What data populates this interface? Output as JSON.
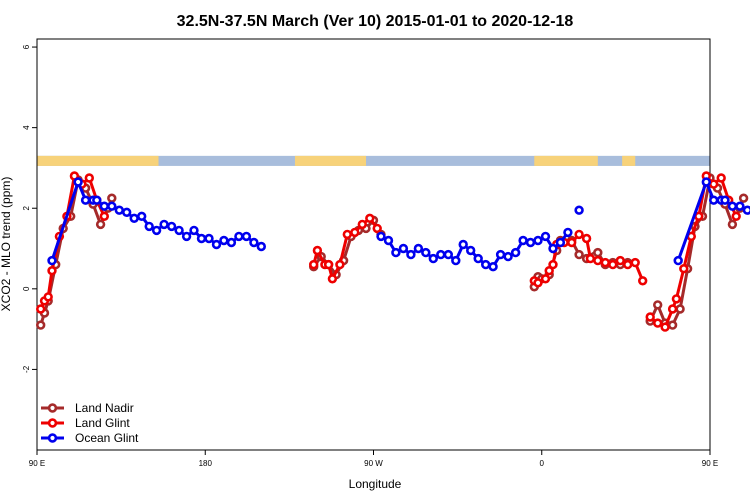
{
  "chart_data": {
    "type": "line",
    "title": "32.5N-37.5N March (Ver 10)   2015-01-01 to 2020-12-18",
    "xlabel": "Longitude",
    "ylabel": "XCO2 - MLO trend (ppm)",
    "xlim": [
      90,
      450
    ],
    "ylim": [
      -4,
      6.2
    ],
    "x_ticks": [
      {
        "value": 90,
        "label": "90 E"
      },
      {
        "value": 180,
        "label": "180"
      },
      {
        "value": 270,
        "label": "90 W"
      },
      {
        "value": 360,
        "label": "0"
      },
      {
        "value": 450,
        "label": "90 E"
      },
      {
        "value": 540,
        "label": "180"
      }
    ],
    "y_ticks": [
      {
        "value": -2,
        "label": "-2"
      },
      {
        "value": 0,
        "label": "0"
      },
      {
        "value": 2,
        "label": "2"
      },
      {
        "value": 4,
        "label": "4"
      },
      {
        "value": 6,
        "label": "6"
      }
    ],
    "surface_band": {
      "y_range": [
        3.05,
        3.3
      ],
      "ocean_color": "#a8bddc",
      "land_color": "#f7d27a",
      "land_segments": [
        [
          90,
          155
        ],
        [
          228,
          266
        ],
        [
          356,
          390
        ],
        [
          403,
          410
        ],
        [
          472,
          514
        ]
      ]
    },
    "legend_position": "bottom-left",
    "series": [
      {
        "name": "Land Nadir",
        "color": "#a52a2a",
        "points": [
          [
            92,
            -0.9
          ],
          [
            94,
            -0.6
          ],
          [
            96,
            -0.3
          ],
          [
            100,
            0.6
          ],
          [
            104,
            1.5
          ],
          [
            108,
            1.8
          ],
          [
            112,
            2.7
          ],
          [
            116,
            2.5
          ],
          [
            120,
            2.1
          ],
          [
            124,
            1.6
          ],
          [
            128,
            2.0
          ],
          [
            130,
            2.25
          ],
          null,
          [
            238,
            0.55
          ],
          [
            242,
            0.8
          ],
          [
            246,
            0.6
          ],
          [
            250,
            0.35
          ],
          [
            254,
            0.7
          ],
          [
            258,
            1.3
          ],
          [
            262,
            1.45
          ],
          [
            266,
            1.5
          ],
          [
            270,
            1.7
          ],
          [
            274,
            1.35
          ],
          null,
          [
            356,
            0.05
          ],
          [
            358,
            0.3
          ],
          [
            360,
            0.25
          ],
          [
            364,
            0.35
          ],
          [
            368,
            0.95
          ],
          [
            370,
            1.2
          ],
          [
            376,
            1.2
          ],
          [
            380,
            0.85
          ],
          [
            384,
            0.75
          ],
          [
            388,
            0.8
          ],
          [
            390,
            0.9
          ],
          [
            394,
            0.6
          ],
          [
            398,
            0.65
          ],
          [
            402,
            0.6
          ],
          [
            406,
            0.65
          ],
          null,
          [
            418,
            -0.8
          ],
          [
            422,
            -0.4
          ],
          [
            426,
            -0.85
          ],
          [
            430,
            -0.9
          ],
          [
            434,
            -0.5
          ],
          [
            438,
            0.5
          ],
          [
            442,
            1.55
          ],
          [
            446,
            1.8
          ],
          [
            450,
            2.75
          ],
          [
            454,
            2.5
          ],
          [
            458,
            2.1
          ],
          [
            462,
            1.6
          ],
          [
            466,
            2.0
          ],
          [
            468,
            2.25
          ]
        ]
      },
      {
        "name": "Land Glint",
        "color": "#ee0000",
        "points": [
          [
            92,
            -0.5
          ],
          [
            94,
            -0.3
          ],
          [
            96,
            -0.2
          ],
          [
            98,
            0.45
          ],
          [
            102,
            1.3
          ],
          [
            106,
            1.8
          ],
          [
            110,
            2.8
          ],
          [
            114,
            2.6
          ],
          [
            118,
            2.75
          ],
          [
            122,
            2.2
          ],
          [
            126,
            1.8
          ],
          null,
          [
            238,
            0.6
          ],
          [
            240,
            0.95
          ],
          [
            244,
            0.6
          ],
          [
            246,
            0.6
          ],
          [
            248,
            0.25
          ],
          [
            252,
            0.6
          ],
          [
            256,
            1.35
          ],
          [
            260,
            1.4
          ],
          [
            264,
            1.6
          ],
          [
            268,
            1.75
          ],
          [
            272,
            1.5
          ],
          null,
          [
            356,
            0.2
          ],
          [
            358,
            0.15
          ],
          [
            362,
            0.25
          ],
          [
            364,
            0.45
          ],
          [
            366,
            0.6
          ],
          [
            368,
            1.1
          ],
          [
            372,
            1.15
          ],
          [
            376,
            1.15
          ],
          [
            380,
            1.35
          ],
          [
            384,
            1.25
          ],
          [
            386,
            0.75
          ],
          [
            390,
            0.7
          ],
          [
            394,
            0.65
          ],
          [
            398,
            0.6
          ],
          [
            402,
            0.7
          ],
          [
            406,
            0.6
          ],
          [
            410,
            0.65
          ],
          [
            414,
            0.2
          ],
          null,
          [
            418,
            -0.7
          ],
          [
            422,
            -0.85
          ],
          [
            426,
            -0.95
          ],
          [
            430,
            -0.5
          ],
          [
            432,
            -0.25
          ],
          [
            436,
            0.5
          ],
          [
            440,
            1.3
          ],
          [
            444,
            1.8
          ],
          [
            448,
            2.8
          ],
          [
            452,
            2.6
          ],
          [
            456,
            2.75
          ],
          [
            460,
            2.2
          ],
          [
            464,
            1.8
          ]
        ]
      },
      {
        "name": "Ocean Glint",
        "color": "#0000ee",
        "points": [
          [
            98,
            0.7
          ],
          [
            112,
            2.65
          ],
          [
            116,
            2.2
          ],
          [
            120,
            2.2
          ],
          [
            122,
            2.2
          ],
          [
            126,
            2.05
          ],
          [
            130,
            2.05
          ],
          [
            134,
            1.95
          ],
          [
            138,
            1.9
          ],
          [
            142,
            1.75
          ],
          [
            146,
            1.8
          ],
          [
            150,
            1.55
          ],
          [
            154,
            1.45
          ],
          [
            158,
            1.6
          ],
          [
            162,
            1.55
          ],
          [
            166,
            1.45
          ],
          [
            170,
            1.3
          ],
          [
            174,
            1.45
          ],
          [
            178,
            1.25
          ],
          [
            182,
            1.25
          ],
          [
            186,
            1.1
          ],
          [
            190,
            1.2
          ],
          [
            194,
            1.15
          ],
          [
            198,
            1.3
          ],
          [
            202,
            1.3
          ],
          [
            206,
            1.15
          ],
          [
            210,
            1.05
          ],
          null,
          [
            274,
            1.3
          ],
          [
            278,
            1.2
          ],
          [
            282,
            0.9
          ],
          [
            286,
            1.0
          ],
          [
            290,
            0.85
          ],
          [
            294,
            1.0
          ],
          [
            298,
            0.9
          ],
          [
            302,
            0.75
          ],
          [
            306,
            0.85
          ],
          [
            310,
            0.85
          ],
          [
            314,
            0.7
          ],
          [
            318,
            1.1
          ],
          [
            322,
            0.95
          ],
          [
            326,
            0.75
          ],
          [
            330,
            0.6
          ],
          [
            334,
            0.55
          ],
          [
            338,
            0.85
          ],
          [
            342,
            0.8
          ],
          [
            346,
            0.9
          ],
          [
            350,
            1.2
          ],
          [
            354,
            1.15
          ],
          [
            358,
            1.2
          ],
          [
            362,
            1.3
          ],
          [
            366,
            1.0
          ],
          [
            370,
            1.15
          ],
          [
            374,
            1.4
          ],
          null,
          [
            380,
            1.95
          ],
          null,
          [
            433,
            0.7
          ],
          [
            448,
            2.65
          ],
          [
            452,
            2.2
          ],
          [
            456,
            2.2
          ],
          [
            458,
            2.2
          ],
          [
            462,
            2.05
          ],
          [
            466,
            2.05
          ],
          [
            470,
            1.95
          ],
          [
            474,
            1.9
          ],
          [
            478,
            1.75
          ],
          [
            482,
            1.8
          ],
          [
            486,
            1.6
          ],
          [
            490,
            1.45
          ],
          [
            494,
            1.6
          ]
        ]
      }
    ]
  }
}
